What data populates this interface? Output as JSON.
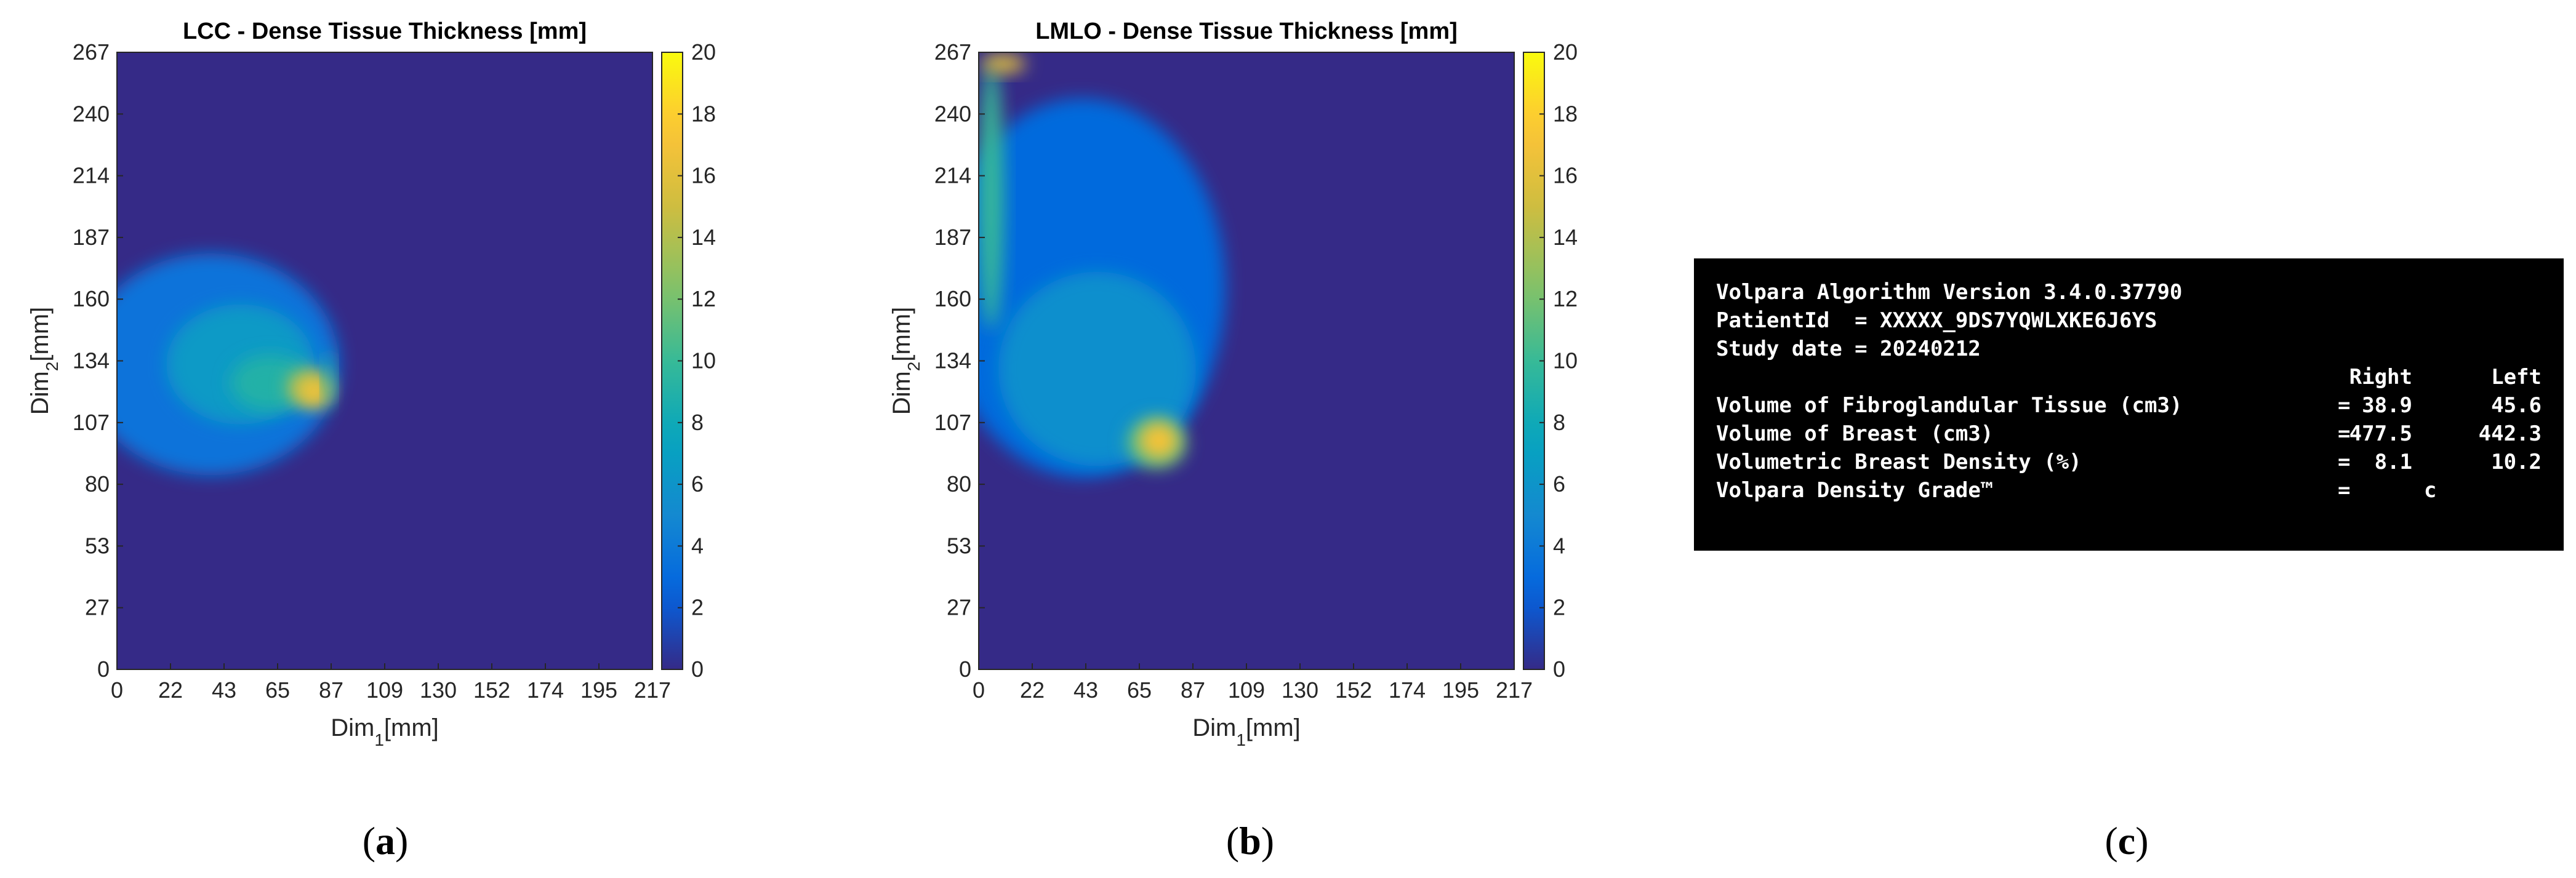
{
  "chart_data": [
    {
      "type": "heatmap",
      "title": "LCC - Dense Tissue Thickness [mm]",
      "xlabel": "Dim",
      "xlabel_sub": "1",
      "xlabel_unit": "[mm]",
      "ylabel": "Dim",
      "ylabel_sub": "2",
      "ylabel_unit": "[mm]",
      "xlim": [
        0,
        217
      ],
      "ylim": [
        0,
        267
      ],
      "xticks": [
        "0",
        "22",
        "43",
        "65",
        "87",
        "109",
        "130",
        "152",
        "174",
        "195",
        "217"
      ],
      "yticks": [
        "0",
        "27",
        "53",
        "80",
        "107",
        "134",
        "160",
        "187",
        "214",
        "240",
        "267"
      ],
      "colorbar": {
        "min": 0,
        "max": 20,
        "ticks": [
          "0",
          "2",
          "4",
          "6",
          "8",
          "10",
          "12",
          "14",
          "16",
          "18",
          "20"
        ],
        "colormap": "parula"
      },
      "background_value": 0,
      "regions": [
        {
          "shape": "ellipse",
          "cx": 38,
          "cy": 132,
          "rx": 52,
          "ry": 48,
          "value": 3.5
        },
        {
          "shape": "ellipse",
          "cx": 50,
          "cy": 132,
          "rx": 30,
          "ry": 26,
          "value": 6.5
        },
        {
          "shape": "ellipse",
          "cx": 62,
          "cy": 124,
          "rx": 16,
          "ry": 12,
          "value": 9
        },
        {
          "shape": "ellipse",
          "cx": 78,
          "cy": 122,
          "rx": 9,
          "ry": 8,
          "value": 14
        },
        {
          "shape": "ellipse",
          "cx": 80,
          "cy": 120,
          "rx": 6,
          "ry": 6,
          "value": 17
        },
        {
          "shape": "ellipse",
          "cx": 86,
          "cy": 126,
          "rx": 2,
          "ry": 12,
          "value": 9
        }
      ],
      "caption": "a"
    },
    {
      "type": "heatmap",
      "title": "LMLO - Dense Tissue Thickness [mm]",
      "xlabel": "Dim",
      "xlabel_sub": "1",
      "xlabel_unit": "[mm]",
      "ylabel": "Dim",
      "ylabel_sub": "2",
      "ylabel_unit": "[mm]",
      "xlim": [
        0,
        217
      ],
      "ylim": [
        0,
        267
      ],
      "xticks": [
        "0",
        "22",
        "43",
        "65",
        "87",
        "109",
        "130",
        "152",
        "174",
        "195",
        "217"
      ],
      "yticks": [
        "0",
        "27",
        "53",
        "80",
        "107",
        "134",
        "160",
        "187",
        "214",
        "240",
        "267"
      ],
      "colorbar": {
        "min": 0,
        "max": 20,
        "ticks": [
          "0",
          "2",
          "4",
          "6",
          "8",
          "10",
          "12",
          "14",
          "16",
          "18",
          "20"
        ],
        "colormap": "parula"
      },
      "background_value": 0,
      "regions": [
        {
          "shape": "ellipse",
          "cx": 42,
          "cy": 165,
          "rx": 58,
          "ry": 82,
          "value": 3
        },
        {
          "shape": "ellipse",
          "cx": 48,
          "cy": 130,
          "rx": 40,
          "ry": 42,
          "value": 5.5
        },
        {
          "shape": "ellipse",
          "cx": 5,
          "cy": 205,
          "rx": 5,
          "ry": 58,
          "value": 10
        },
        {
          "shape": "ellipse",
          "cx": 10,
          "cy": 262,
          "rx": 9,
          "ry": 4,
          "value": 16
        },
        {
          "shape": "ellipse",
          "cx": 72,
          "cy": 98,
          "rx": 12,
          "ry": 11,
          "value": 11
        },
        {
          "shape": "ellipse",
          "cx": 73,
          "cy": 99,
          "rx": 8,
          "ry": 8,
          "value": 17
        }
      ],
      "caption": "b"
    }
  ],
  "report": {
    "version_line": "Volpara Algorithm Version 3.4.0.37790",
    "patient_line": "PatientId  = XXXXX_9DS7YQWLXKE6J6YS",
    "date_line": "Study date = 20240212",
    "header_right": "Right",
    "header_left": "Left",
    "rows": [
      {
        "label": "Volume of Fibroglandular Tissue (cm3)",
        "eq": "=",
        "right": "38.9",
        "left": "45.6"
      },
      {
        "label": "Volume of Breast (cm3)",
        "eq": "=",
        "right": "477.5",
        "left": "442.3"
      },
      {
        "label": "Volumetric Breast Density (%)",
        "eq": "=",
        "right": "8.1",
        "left": "10.2"
      }
    ],
    "grade": {
      "label": "Volpara Density Grade™",
      "eq": "=",
      "value": "c"
    },
    "caption": "c"
  }
}
